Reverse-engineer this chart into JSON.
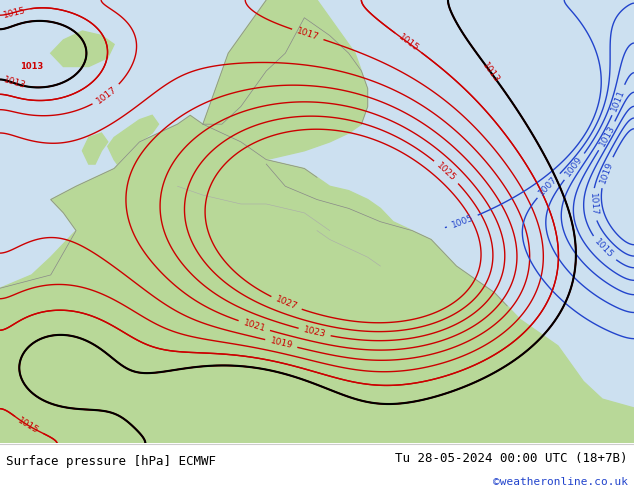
{
  "title_left": "Surface pressure [hPa] ECMWF",
  "title_right": "Tu 28-05-2024 00:00 UTC (18+7B)",
  "watermark": "©weatheronline.co.uk",
  "land_color": "#b8d898",
  "sea_color": "#cce0f0",
  "footer_bg": "#ffffff",
  "contour_red": "#cc0000",
  "contour_blue": "#2244cc",
  "contour_black": "#000000",
  "figsize": [
    6.34,
    4.9
  ],
  "dpi": 100
}
